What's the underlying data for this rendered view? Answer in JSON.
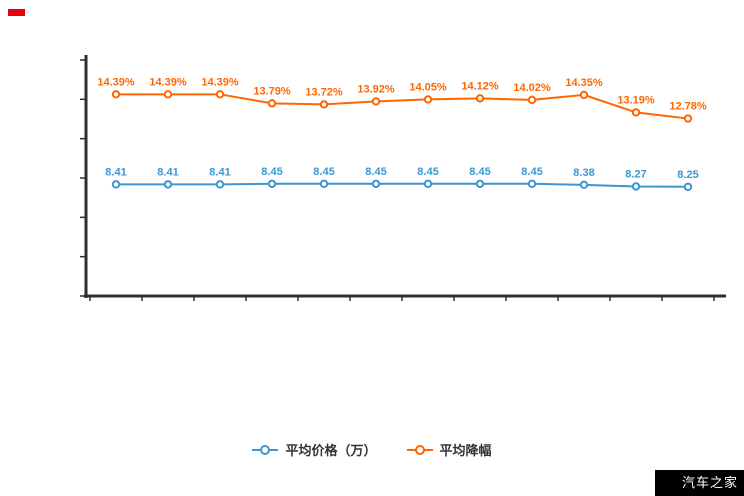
{
  "chart_data": {
    "type": "line",
    "title": "",
    "xlabel": "",
    "ylabel": "",
    "x_tick_labels": [],
    "y_tick_labels": [],
    "ylim": [
      1,
      17
    ],
    "grid": false,
    "legend_position": "bottom-center",
    "axis_color": "#2f2f2f",
    "series": [
      {
        "name": "平均降幅",
        "color": "#ff6600",
        "values": [
          14.39,
          14.39,
          14.39,
          13.79,
          13.72,
          13.92,
          14.05,
          14.12,
          14.02,
          14.35,
          13.19,
          12.78
        ],
        "labels": [
          "14.39%",
          "14.39%",
          "14.39%",
          "13.79%",
          "13.72%",
          "13.92%",
          "14.05%",
          "14.12%",
          "14.02%",
          "14.35%",
          "13.19%",
          "12.78%"
        ]
      },
      {
        "name": "平均价格（万）",
        "color": "#3a97d0",
        "values": [
          8.41,
          8.41,
          8.41,
          8.45,
          8.45,
          8.45,
          8.45,
          8.45,
          8.45,
          8.38,
          8.27,
          8.25
        ],
        "labels": [
          "8.41",
          "8.41",
          "8.41",
          "8.45",
          "8.45",
          "8.45",
          "8.45",
          "8.45",
          "8.45",
          "8.38",
          "8.27",
          "8.25"
        ]
      }
    ]
  },
  "legend": {
    "order": [
      1,
      0
    ]
  },
  "watermark": {
    "text": "汽车之家",
    "bg": "#000000",
    "fg": "#ffffff"
  },
  "decorations": {
    "red_mark_color": "#e60012"
  }
}
